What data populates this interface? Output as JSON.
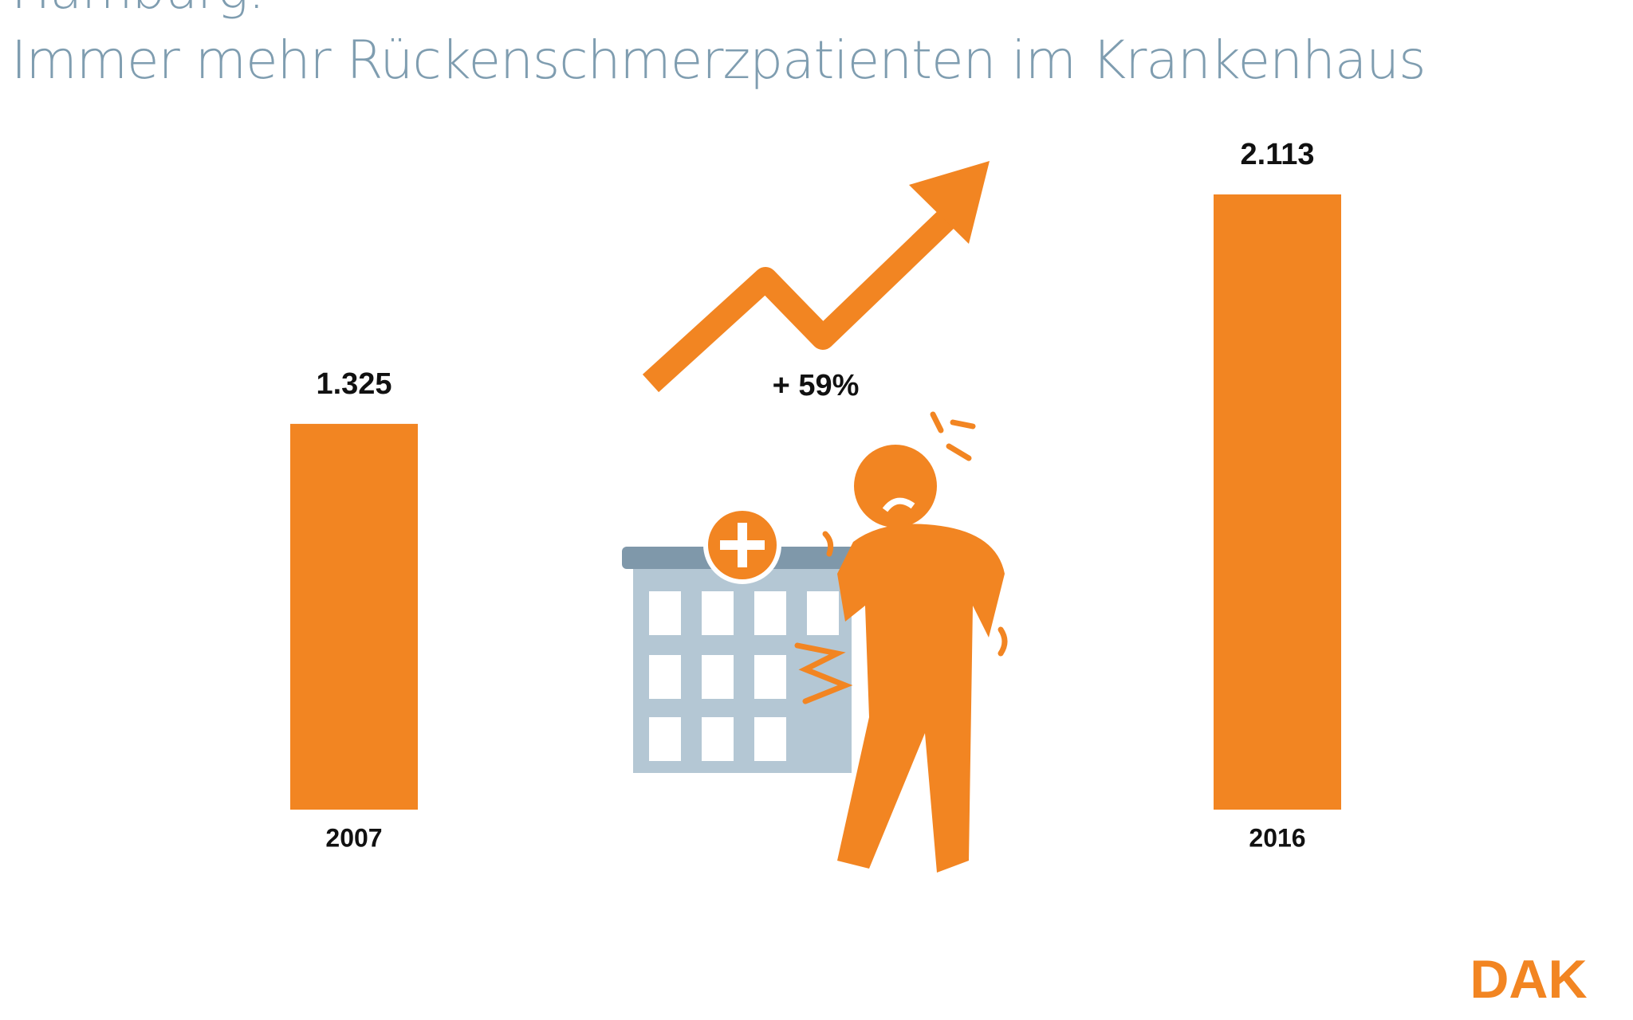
{
  "chart_data": {
    "type": "bar",
    "supertitle": "Hamburg:",
    "title": "Immer mehr Rückenschmerzpatienten im Krankenhaus",
    "categories": [
      "2007",
      "2016"
    ],
    "values": [
      1325,
      2113
    ],
    "value_labels": [
      "1.325",
      "2.113"
    ],
    "color": "#f28522",
    "annotation": "+ 59%",
    "logo": "DAK"
  }
}
